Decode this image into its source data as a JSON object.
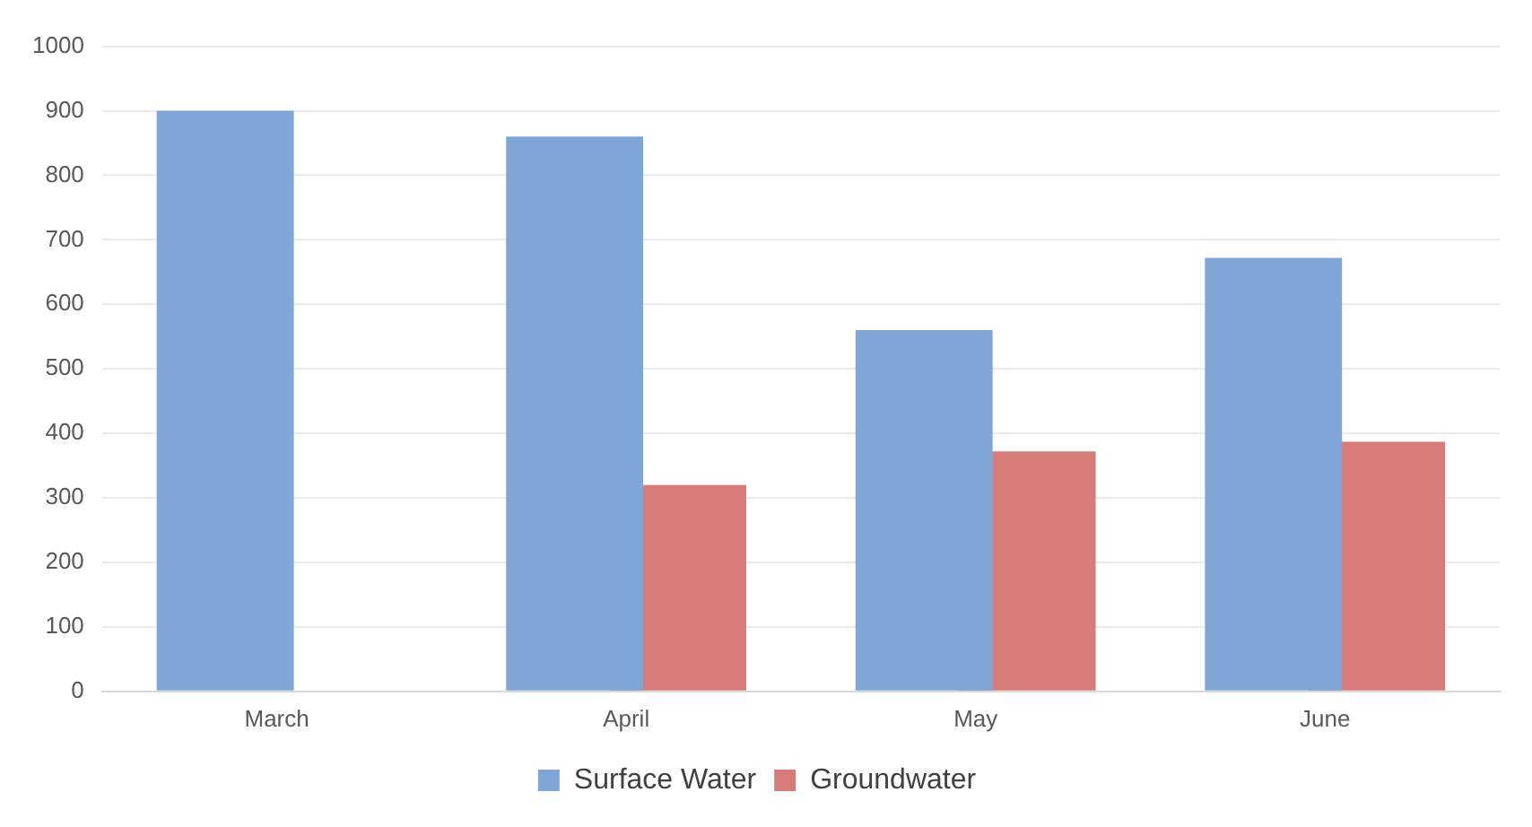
{
  "chart_data": {
    "type": "bar",
    "categories": [
      "March",
      "April",
      "May",
      "June"
    ],
    "series": [
      {
        "name": "Surface Water",
        "color": "#7fa6d6",
        "values": [
          900,
          860,
          560,
          672
        ]
      },
      {
        "name": "Groundwater",
        "color": "#d67b78",
        "values": [
          null,
          320,
          372,
          387
        ]
      }
    ],
    "ylim": [
      0,
      1000
    ],
    "yticks": [
      0,
      100,
      200,
      300,
      400,
      500,
      600,
      700,
      800,
      900,
      1000
    ],
    "grid": "y",
    "legend": "bottom"
  }
}
